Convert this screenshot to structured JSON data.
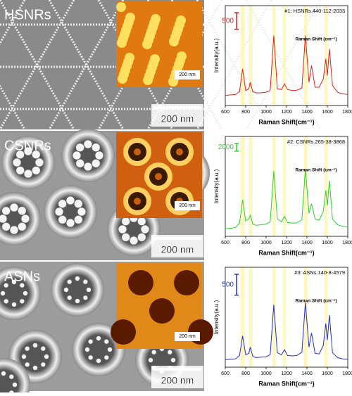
{
  "panels": [
    {
      "label": "HSNRs",
      "scale_bar": "200 nm",
      "inset_scale": "200 nm"
    },
    {
      "label": "CSNRs",
      "scale_bar": "200 nm",
      "inset_scale": "200 nm"
    },
    {
      "label": "ASNs",
      "scale_bar": "200 nm",
      "inset_scale": "200 nm"
    }
  ],
  "chart_data": [
    {
      "type": "line",
      "annotation": "#1: HSNRs.440-112-2033",
      "inset_label": "Raman Shift (cm⁻¹)",
      "x_label": "Raman Shift(cm⁻¹)",
      "y_label": "Intensity(a.u.)",
      "color": "#e02020",
      "scale_bar": 500,
      "scale_bar_color": "#e02020",
      "xlim": [
        600,
        1800
      ],
      "xticks": [
        600,
        800,
        1000,
        1200,
        1400,
        1600,
        1800
      ],
      "ylim": [
        0,
        3000
      ],
      "highlights": [
        [
          750,
          790
        ],
        [
          830,
          865
        ],
        [
          1060,
          1090
        ],
        [
          1165,
          1195
        ],
        [
          1370,
          1405
        ],
        [
          1570,
          1600
        ]
      ],
      "x": [
        600,
        650,
        700,
        740,
        770,
        800,
        830,
        845,
        870,
        900,
        950,
        1000,
        1040,
        1075,
        1110,
        1150,
        1180,
        1210,
        1260,
        1300,
        1350,
        1385,
        1420,
        1445,
        1480,
        1520,
        1560,
        1585,
        1600,
        1620,
        1650,
        1700,
        1750,
        1800
      ],
      "values": [
        300,
        320,
        330,
        420,
        1100,
        450,
        500,
        700,
        420,
        380,
        380,
        400,
        450,
        2100,
        500,
        480,
        650,
        480,
        450,
        460,
        520,
        2100,
        700,
        1200,
        550,
        550,
        800,
        1400,
        900,
        1700,
        600,
        400,
        350,
        330
      ]
    },
    {
      "type": "line",
      "annotation": "#2: CSNRs.265-38-3868",
      "inset_label": "Raman Shift (cm⁻¹)",
      "x_label": "Raman Shift(cm⁻¹)",
      "y_label": "Intensity(a.u.)",
      "color": "#30d030",
      "scale_bar": 2000,
      "scale_bar_color": "#30d030",
      "xlim": [
        600,
        1800
      ],
      "xticks": [
        600,
        800,
        1000,
        1200,
        1400,
        1600,
        1800
      ],
      "ylim": [
        0,
        26000
      ],
      "highlights": [
        [
          750,
          790
        ],
        [
          830,
          865
        ],
        [
          1060,
          1090
        ],
        [
          1165,
          1195
        ],
        [
          1370,
          1405
        ],
        [
          1570,
          1600
        ]
      ],
      "x": [
        600,
        650,
        700,
        740,
        770,
        800,
        830,
        845,
        870,
        900,
        950,
        1000,
        1040,
        1075,
        1110,
        1150,
        1180,
        1210,
        1260,
        1300,
        1350,
        1385,
        1420,
        1445,
        1480,
        1520,
        1560,
        1585,
        1600,
        1620,
        1650,
        1700,
        1750,
        1800
      ],
      "values": [
        2000,
        2100,
        2300,
        3500,
        9500,
        4000,
        4500,
        5500,
        3200,
        2900,
        3000,
        3200,
        3800,
        17000,
        4500,
        3800,
        5200,
        3600,
        3400,
        3500,
        4300,
        17500,
        6000,
        8500,
        4500,
        4200,
        6500,
        12000,
        8000,
        14500,
        4500,
        3000,
        2600,
        2500
      ]
    },
    {
      "type": "line",
      "annotation": "#3: ASNs.140-8-4579",
      "inset_label": "Raman Shift (cm⁻¹)",
      "x_label": "Raman Shift(cm⁻¹)",
      "y_label": "Intensity(a.u.)",
      "color": "#2030d0",
      "scale_bar": 500,
      "scale_bar_color": "#2030d0",
      "xlim": [
        600,
        1800
      ],
      "xticks": [
        600,
        800,
        1000,
        1200,
        1400,
        1600,
        1800
      ],
      "ylim": [
        0,
        2400
      ],
      "highlights": [
        [
          750,
          790
        ],
        [
          830,
          865
        ],
        [
          1060,
          1090
        ],
        [
          1165,
          1195
        ],
        [
          1370,
          1405
        ],
        [
          1570,
          1600
        ]
      ],
      "x": [
        600,
        650,
        700,
        740,
        770,
        800,
        830,
        845,
        870,
        900,
        950,
        1000,
        1040,
        1075,
        1110,
        1150,
        1180,
        1210,
        1260,
        1300,
        1350,
        1385,
        1420,
        1445,
        1480,
        1520,
        1560,
        1585,
        1600,
        1620,
        1650,
        1700,
        1750,
        1800
      ],
      "values": [
        180,
        190,
        200,
        280,
        750,
        300,
        330,
        480,
        260,
        230,
        240,
        250,
        300,
        1500,
        350,
        300,
        420,
        280,
        270,
        280,
        360,
        1550,
        480,
        820,
        330,
        320,
        520,
        1050,
        650,
        1250,
        350,
        230,
        200,
        190
      ]
    }
  ]
}
